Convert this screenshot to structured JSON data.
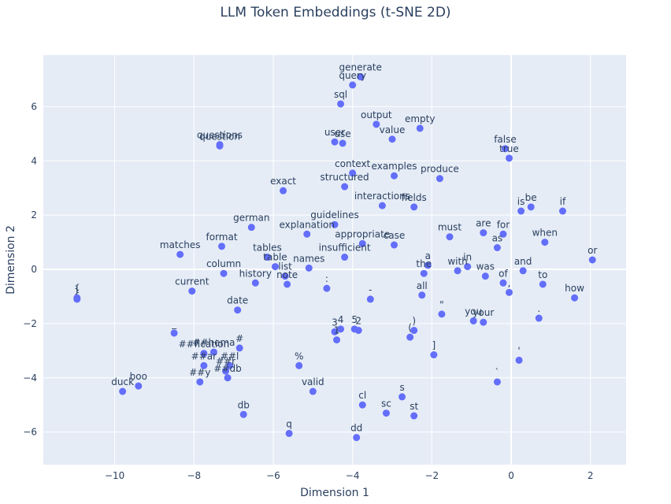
{
  "chart_data": {
    "type": "scatter",
    "title": "LLM Token Embeddings (t-SNE 2D)",
    "xlabel": "Dimension 1",
    "ylabel": "Dimension 2",
    "xlim": [
      -11.8,
      2.9
    ],
    "ylim": [
      -7.2,
      7.9
    ],
    "xticks": [
      -10,
      -8,
      -6,
      -4,
      -2,
      0,
      2
    ],
    "yticks": [
      -6,
      -4,
      -2,
      0,
      2,
      4,
      6
    ],
    "marker_color": "#636efa",
    "plot_bg": "#e5ecf6",
    "grid": true,
    "points": [
      {
        "label": "generate",
        "x": -3.8,
        "y": 7.1
      },
      {
        "label": "query",
        "x": -4.0,
        "y": 6.8
      },
      {
        "label": "sql",
        "x": -4.3,
        "y": 6.1
      },
      {
        "label": "output",
        "x": -3.4,
        "y": 5.35
      },
      {
        "label": "empty",
        "x": -2.3,
        "y": 5.2
      },
      {
        "label": "value",
        "x": -3.0,
        "y": 4.8
      },
      {
        "label": "user",
        "x": -4.45,
        "y": 4.7
      },
      {
        "label": "use",
        "x": -4.25,
        "y": 4.65
      },
      {
        "label": "questions",
        "x": -7.35,
        "y": 4.6
      },
      {
        "label": "question",
        "x": -7.35,
        "y": 4.55
      },
      {
        "label": "false",
        "x": -0.15,
        "y": 4.45
      },
      {
        "label": "true",
        "x": -0.05,
        "y": 4.1
      },
      {
        "label": "context",
        "x": -4.0,
        "y": 3.55
      },
      {
        "label": "examples",
        "x": -2.95,
        "y": 3.45
      },
      {
        "label": "produce",
        "x": -1.8,
        "y": 3.35
      },
      {
        "label": "structured",
        "x": -4.2,
        "y": 3.05
      },
      {
        "label": "exact",
        "x": -5.75,
        "y": 2.9
      },
      {
        "label": "interactions",
        "x": -3.25,
        "y": 2.35
      },
      {
        "label": "fields",
        "x": -2.45,
        "y": 2.3
      },
      {
        "label": "be",
        "x": 0.5,
        "y": 2.3
      },
      {
        "label": "is",
        "x": 0.25,
        "y": 2.15
      },
      {
        "label": "if",
        "x": 1.3,
        "y": 2.15
      },
      {
        "label": "guidelines",
        "x": -4.45,
        "y": 1.65
      },
      {
        "label": "german",
        "x": -6.55,
        "y": 1.55
      },
      {
        "label": "explanation",
        "x": -5.15,
        "y": 1.3
      },
      {
        "label": "are",
        "x": -0.7,
        "y": 1.35
      },
      {
        "label": "for",
        "x": -0.2,
        "y": 1.3
      },
      {
        "label": "must",
        "x": -1.55,
        "y": 1.2
      },
      {
        "label": "when",
        "x": 0.85,
        "y": 1.0
      },
      {
        "label": "appropriate",
        "x": -3.75,
        "y": 0.95
      },
      {
        "label": "case",
        "x": -2.95,
        "y": 0.9
      },
      {
        "label": "format",
        "x": -7.3,
        "y": 0.85
      },
      {
        "label": "as",
        "x": -0.35,
        "y": 0.8
      },
      {
        "label": "matches",
        "x": -8.35,
        "y": 0.55
      },
      {
        "label": "insufficient",
        "x": -4.2,
        "y": 0.45
      },
      {
        "label": "tables",
        "x": -6.15,
        "y": 0.45
      },
      {
        "label": "or",
        "x": 2.05,
        "y": 0.35
      },
      {
        "label": "table",
        "x": -5.95,
        "y": 0.1
      },
      {
        "label": "a",
        "x": -2.1,
        "y": 0.15
      },
      {
        "label": "in",
        "x": -1.1,
        "y": 0.1
      },
      {
        "label": "names",
        "x": -5.1,
        "y": 0.05
      },
      {
        "label": "with",
        "x": -1.35,
        "y": -0.05
      },
      {
        "label": "and",
        "x": 0.3,
        "y": -0.05
      },
      {
        "label": "the",
        "x": -2.2,
        "y": -0.15
      },
      {
        "label": "column",
        "x": -7.25,
        "y": -0.15
      },
      {
        "label": "was",
        "x": -0.65,
        "y": -0.25
      },
      {
        "label": "list",
        "x": -5.7,
        "y": -0.25
      },
      {
        "label": "history",
        "x": -6.45,
        "y": -0.5
      },
      {
        "label": "of",
        "x": -0.2,
        "y": -0.5
      },
      {
        "label": "to",
        "x": 0.8,
        "y": -0.55
      },
      {
        "label": "note",
        "x": -5.65,
        "y": -0.55
      },
      {
        "label": ":",
        "x": -4.65,
        "y": -0.7
      },
      {
        "label": ",",
        "x": -0.05,
        "y": -0.85
      },
      {
        "label": "current",
        "x": -8.05,
        "y": -0.8
      },
      {
        "label": "all",
        "x": -2.25,
        "y": -0.95
      },
      {
        "label": "how",
        "x": 1.6,
        "y": -1.05
      },
      {
        "label": "{",
        "x": -10.95,
        "y": -1.05
      },
      {
        "label": "}",
        "x": -10.95,
        "y": -1.1
      },
      {
        "label": "-",
        "x": -3.55,
        "y": -1.1
      },
      {
        "label": "date",
        "x": -6.9,
        "y": -1.5
      },
      {
        "label": "\"",
        "x": -1.75,
        "y": -1.65
      },
      {
        "label": ".",
        "x": 0.7,
        "y": -1.8
      },
      {
        "label": "you",
        "x": -0.95,
        "y": -1.9
      },
      {
        "label": "your",
        "x": -0.7,
        "y": -1.95
      },
      {
        "label": "4",
        "x": -4.3,
        "y": -2.2
      },
      {
        "label": "5",
        "x": -3.95,
        "y": -2.2
      },
      {
        "label": "2",
        "x": -3.85,
        "y": -2.25
      },
      {
        "label": ")",
        "x": -2.45,
        "y": -2.25
      },
      {
        "label": "3",
        "x": -4.45,
        "y": -2.3
      },
      {
        "label": "_",
        "x": -8.5,
        "y": -2.35
      },
      {
        "label": "(",
        "x": -2.55,
        "y": -2.5
      },
      {
        "label": "1",
        "x": -4.4,
        "y": -2.6
      },
      {
        "label": "#",
        "x": -6.85,
        "y": -2.9
      },
      {
        "label": "##hema",
        "x": -7.5,
        "y": -3.05
      },
      {
        "label": "##fication",
        "x": -7.75,
        "y": -3.1
      },
      {
        "label": "]",
        "x": -1.95,
        "y": -3.15
      },
      {
        "label": "'",
        "x": 0.2,
        "y": -3.35
      },
      {
        "label": "##ar",
        "x": -7.75,
        "y": -3.55
      },
      {
        "label": "##l",
        "x": -7.1,
        "y": -3.55
      },
      {
        "label": "%",
        "x": -5.35,
        "y": -3.55
      },
      {
        "label": "##r",
        "x": -7.2,
        "y": -3.75
      },
      {
        "label": "##y",
        "x": -7.85,
        "y": -4.15
      },
      {
        "label": "##db",
        "x": -7.15,
        "y": -4.0
      },
      {
        "label": "`",
        "x": -0.35,
        "y": -4.15
      },
      {
        "label": "boo",
        "x": -9.4,
        "y": -4.3
      },
      {
        "label": "duck",
        "x": -9.8,
        "y": -4.5
      },
      {
        "label": "valid",
        "x": -5.0,
        "y": -4.5
      },
      {
        "label": "s",
        "x": -2.75,
        "y": -4.7
      },
      {
        "label": "cl",
        "x": -3.75,
        "y": -5.0
      },
      {
        "label": "sc",
        "x": -3.15,
        "y": -5.3
      },
      {
        "label": "db",
        "x": -6.75,
        "y": -5.35
      },
      {
        "label": "st",
        "x": -2.45,
        "y": -5.4
      },
      {
        "label": "q",
        "x": -5.6,
        "y": -6.05
      },
      {
        "label": "dd",
        "x": -3.9,
        "y": -6.2
      }
    ]
  }
}
